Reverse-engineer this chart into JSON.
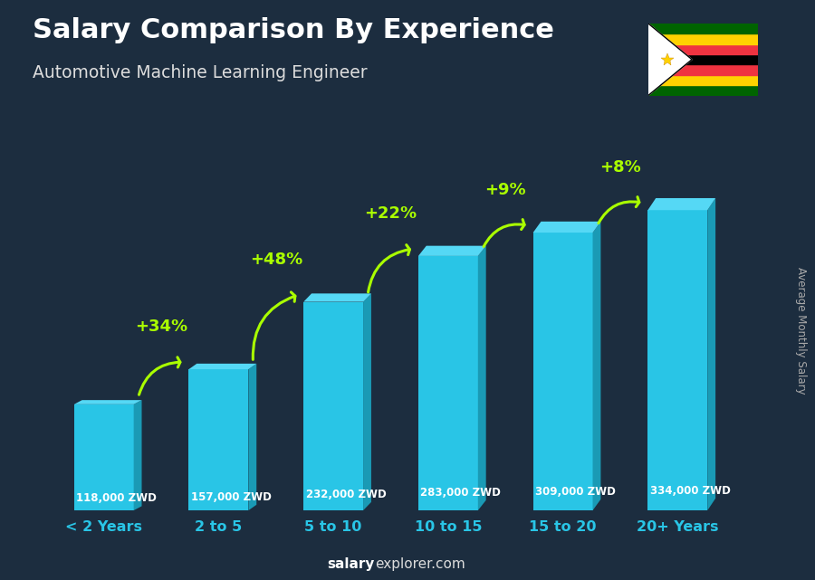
{
  "title": "Salary Comparison By Experience",
  "subtitle": "Automotive Machine Learning Engineer",
  "categories": [
    "< 2 Years",
    "2 to 5",
    "5 to 10",
    "10 to 15",
    "15 to 20",
    "20+ Years"
  ],
  "values": [
    118000,
    157000,
    232000,
    283000,
    309000,
    334000
  ],
  "bar_color": "#29c5e6",
  "bar_color_side": "#1a9ab5",
  "bar_color_top": "#55d8f5",
  "pct_increases": [
    "+34%",
    "+48%",
    "+22%",
    "+9%",
    "+8%"
  ],
  "value_labels": [
    "118,000 ZWD",
    "157,000 ZWD",
    "232,000 ZWD",
    "283,000 ZWD",
    "309,000 ZWD",
    "334,000 ZWD"
  ],
  "ylabel_text": "Average Monthly Salary",
  "title_color": "#ffffff",
  "subtitle_color": "#dddddd",
  "bar_label_color": "#ffffff",
  "pct_color": "#aaff00",
  "arrow_color": "#aaff00",
  "bg_color": "#1c2d3f",
  "tick_color": "#29c5e6",
  "ylabel_color": "#aaaaaa",
  "footer_bold_color": "#ffffff",
  "footer_normal_color": "#dddddd",
  "flag_stripe_colors": [
    "#006400",
    "#FFD200",
    "#EF3340",
    "#000000",
    "#EF3340",
    "#FFD200",
    "#006400"
  ]
}
